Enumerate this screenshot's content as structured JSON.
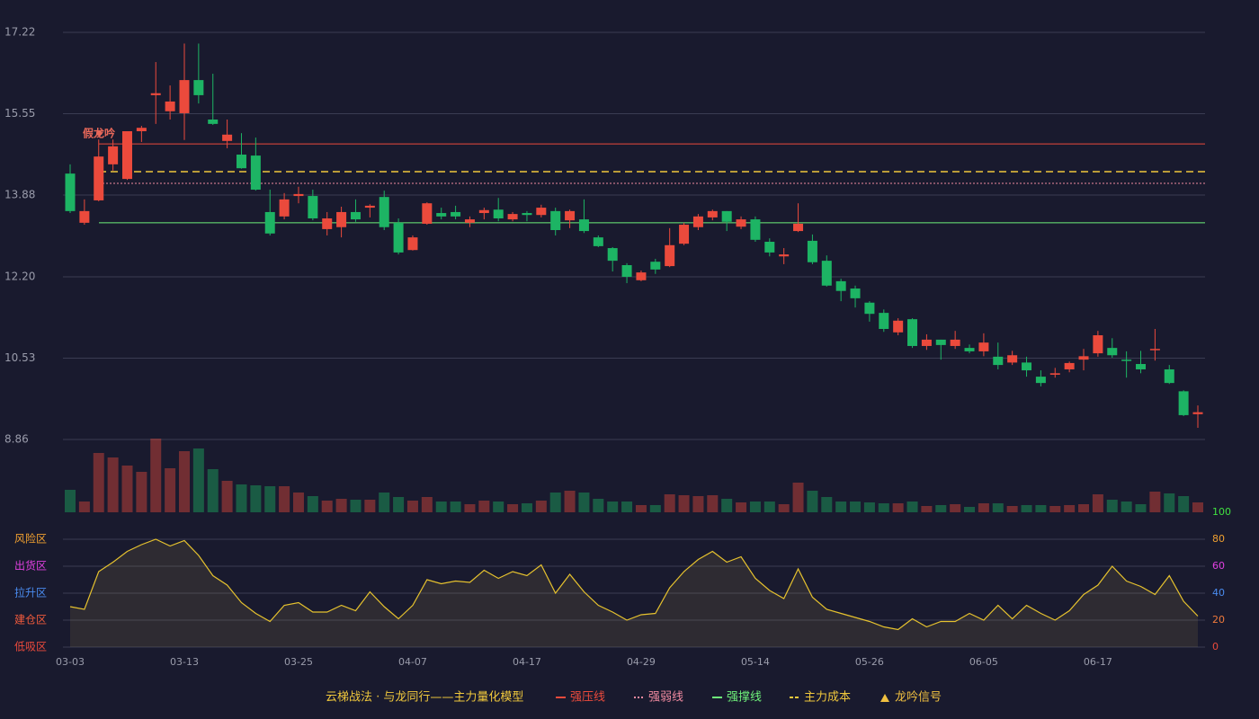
{
  "chart_data": [
    {
      "type": "candlestick",
      "categories": [
        "03-03",
        null,
        null,
        null,
        null,
        null,
        null,
        null,
        "03-13",
        null,
        null,
        null,
        null,
        null,
        null,
        null,
        "03-25",
        null,
        null,
        null,
        null,
        null,
        null,
        null,
        "04-07",
        null,
        null,
        null,
        null,
        null,
        null,
        null,
        "04-17",
        null,
        null,
        null,
        null,
        null,
        null,
        null,
        "04-29",
        null,
        null,
        null,
        null,
        null,
        null,
        null,
        "05-14",
        null,
        null,
        null,
        null,
        null,
        null,
        null,
        "05-26",
        null,
        null,
        null,
        null,
        null,
        null,
        null,
        "06-05",
        null,
        null,
        null,
        null,
        null,
        null,
        null,
        "06-17",
        null,
        null,
        null,
        null,
        null,
        null,
        null
      ],
      "open": [
        14.32,
        13.31,
        13.77,
        14.51,
        14.21,
        15.19,
        15.93,
        15.6,
        15.56,
        16.24,
        15.43,
        14.99,
        14.71,
        14.69,
        13.53,
        13.44,
        13.86,
        13.86,
        13.18,
        13.22,
        13.53,
        13.62,
        13.84,
        13.31,
        12.75,
        13.29,
        13.51,
        13.53,
        13.31,
        13.51,
        13.58,
        13.38,
        13.51,
        13.47,
        13.55,
        13.36,
        13.38,
        13.01,
        12.79,
        12.44,
        12.13,
        12.51,
        12.42,
        12.88,
        13.22,
        13.42,
        13.55,
        13.23,
        13.38,
        12.92,
        12.62,
        13.14,
        12.94,
        12.53,
        12.11,
        11.96,
        11.67,
        11.46,
        11.06,
        11.33,
        10.78,
        10.91,
        10.78,
        10.74,
        10.67,
        10.56,
        10.44,
        10.44,
        10.15,
        10.19,
        10.3,
        10.5,
        10.63,
        10.74,
        10.5,
        10.41,
        10.7,
        10.3,
        9.85,
        9.38
      ],
      "high": [
        14.51,
        13.79,
        15.02,
        15.02,
        15.19,
        15.3,
        16.61,
        16.13,
        16.99,
        16.99,
        16.37,
        15.43,
        15.15,
        15.06,
        13.99,
        13.92,
        14.05,
        13.99,
        13.53,
        13.64,
        13.79,
        13.69,
        13.97,
        13.4,
        13.05,
        13.73,
        13.62,
        13.66,
        13.44,
        13.62,
        13.82,
        13.53,
        13.55,
        13.68,
        13.62,
        13.58,
        13.79,
        13.05,
        12.81,
        12.48,
        12.33,
        12.57,
        13.2,
        13.31,
        13.49,
        13.58,
        13.55,
        13.44,
        13.44,
        12.99,
        12.79,
        13.71,
        13.07,
        12.64,
        12.16,
        12.02,
        11.7,
        11.53,
        11.35,
        11.35,
        11.02,
        10.91,
        11.09,
        10.81,
        11.04,
        10.85,
        10.68,
        10.56,
        10.28,
        10.33,
        10.46,
        10.72,
        11.09,
        10.94,
        10.67,
        10.68,
        11.13,
        10.39,
        9.87,
        9.56
      ],
      "low": [
        13.51,
        13.27,
        13.75,
        14.38,
        14.19,
        14.97,
        15.34,
        15.43,
        15.01,
        15.76,
        15.32,
        14.84,
        14.42,
        13.97,
        13.05,
        13.38,
        13.71,
        13.36,
        13.05,
        13.01,
        13.33,
        13.42,
        13.16,
        12.66,
        12.74,
        13.27,
        13.38,
        13.38,
        13.22,
        13.38,
        13.34,
        13.34,
        13.34,
        13.42,
        13.05,
        13.2,
        13.1,
        12.81,
        12.31,
        12.07,
        12.11,
        12.26,
        12.4,
        12.85,
        13.16,
        13.36,
        13.14,
        13.18,
        12.92,
        12.62,
        12.46,
        13.12,
        12.46,
        12.0,
        11.7,
        11.57,
        11.28,
        11.07,
        11.0,
        10.74,
        10.7,
        10.5,
        10.72,
        10.63,
        10.57,
        10.3,
        10.39,
        10.15,
        9.95,
        10.13,
        10.24,
        10.28,
        10.56,
        10.54,
        10.13,
        10.22,
        10.48,
        10.0,
        9.34,
        9.1
      ],
      "close": [
        13.55,
        13.55,
        14.67,
        14.88,
        15.19,
        15.26,
        15.97,
        15.8,
        16.24,
        15.93,
        15.34,
        15.12,
        14.43,
        13.99,
        13.09,
        13.79,
        13.9,
        13.4,
        13.4,
        13.53,
        13.38,
        13.66,
        13.22,
        12.7,
        13.01,
        13.71,
        13.44,
        13.44,
        13.38,
        13.57,
        13.4,
        13.49,
        13.47,
        13.62,
        13.16,
        13.55,
        13.14,
        12.83,
        12.53,
        12.2,
        12.29,
        12.35,
        12.85,
        13.27,
        13.44,
        13.55,
        13.33,
        13.38,
        12.96,
        12.7,
        12.66,
        13.29,
        12.5,
        12.02,
        11.91,
        11.76,
        11.44,
        11.13,
        11.3,
        10.78,
        10.91,
        10.8,
        10.91,
        10.67,
        10.85,
        10.39,
        10.59,
        10.28,
        10.02,
        10.22,
        10.43,
        10.57,
        11.0,
        10.59,
        10.48,
        10.3,
        10.72,
        10.02,
        9.36,
        9.42
      ],
      "volume": [
        25,
        12,
        66,
        61,
        52,
        45,
        82,
        49,
        68,
        71,
        48,
        35,
        31,
        30,
        29,
        29,
        22,
        18,
        13,
        15,
        14,
        14,
        22,
        17,
        13,
        17,
        12,
        12,
        9,
        13,
        12,
        9,
        10,
        13,
        22,
        24,
        22,
        15,
        12,
        12,
        8,
        8,
        20,
        19,
        18,
        19,
        15,
        11,
        12,
        12,
        9,
        33,
        24,
        17,
        12,
        12,
        11,
        10,
        10,
        12,
        7,
        8,
        9,
        6,
        10,
        10,
        7,
        8,
        8,
        7,
        8,
        9,
        20,
        14,
        12,
        9,
        23,
        21,
        18,
        11
      ],
      "ylim": [
        8.86,
        17.22
      ],
      "yticks": [
        8.86,
        10.53,
        {
          "value": 12.2,
          "label": "12.20"
        },
        13.88,
        15.55,
        17.22
      ],
      "up_color": "#eb4a3c",
      "down_color": "#1db464",
      "grid": true,
      "annotation": "假龙吟",
      "lines": [
        {
          "name": "强压线",
          "value": 14.93,
          "color": "#eb4a3c",
          "style": "solid"
        },
        {
          "name": "强弱线",
          "value": 14.12,
          "color": "#f08aa0",
          "style": "dotted"
        },
        {
          "name": "强撑线",
          "value": 13.31,
          "color": "#6ef07a",
          "style": "solid"
        },
        {
          "name": "主力成本",
          "value": 14.36,
          "color": "#f0c83c",
          "style": "dashed"
        }
      ],
      "legend_title": "云梯战法 · 与龙同行——主力量化模型",
      "signal": {
        "name": "龙吟信号",
        "color": "#f0c040"
      }
    },
    {
      "type": "area",
      "values": [
        30,
        28,
        56,
        63,
        71,
        76,
        80,
        75,
        79,
        68,
        53,
        46,
        33,
        25,
        19,
        31,
        33,
        26,
        26,
        31,
        27,
        41,
        30,
        21,
        31,
        50,
        47,
        49,
        48,
        57,
        51,
        56,
        53,
        61,
        40,
        54,
        41,
        31,
        26,
        20,
        24,
        25,
        44,
        56,
        65,
        71,
        63,
        67,
        51,
        42,
        36,
        58,
        37,
        28,
        25,
        22,
        19,
        15,
        13,
        21,
        15,
        19,
        19,
        25,
        20,
        31,
        21,
        31,
        25,
        20,
        27,
        39,
        46,
        60,
        49,
        45,
        39,
        53,
        34,
        23
      ],
      "color": "#e6c22e",
      "ylim": [
        0,
        100
      ],
      "yticks": [
        0,
        20,
        40,
        60,
        80,
        100
      ],
      "ytick_colors": [
        "#eb4a3c",
        "#f07a3c",
        "#4a8cf0",
        "#e040e0",
        "#f0a030",
        "#40e040"
      ],
      "zones": [
        {
          "label": "风险区",
          "value": 80,
          "color": "#f0a030"
        },
        {
          "label": "出货区",
          "value": 60,
          "color": "#e040e0"
        },
        {
          "label": "拉升区",
          "value": 40,
          "color": "#4a8cf0"
        },
        {
          "label": "建仓区",
          "value": 20,
          "color": "#f05a3c"
        },
        {
          "label": "低吸区",
          "value": 0,
          "color": "#eb4a3c"
        }
      ]
    }
  ]
}
